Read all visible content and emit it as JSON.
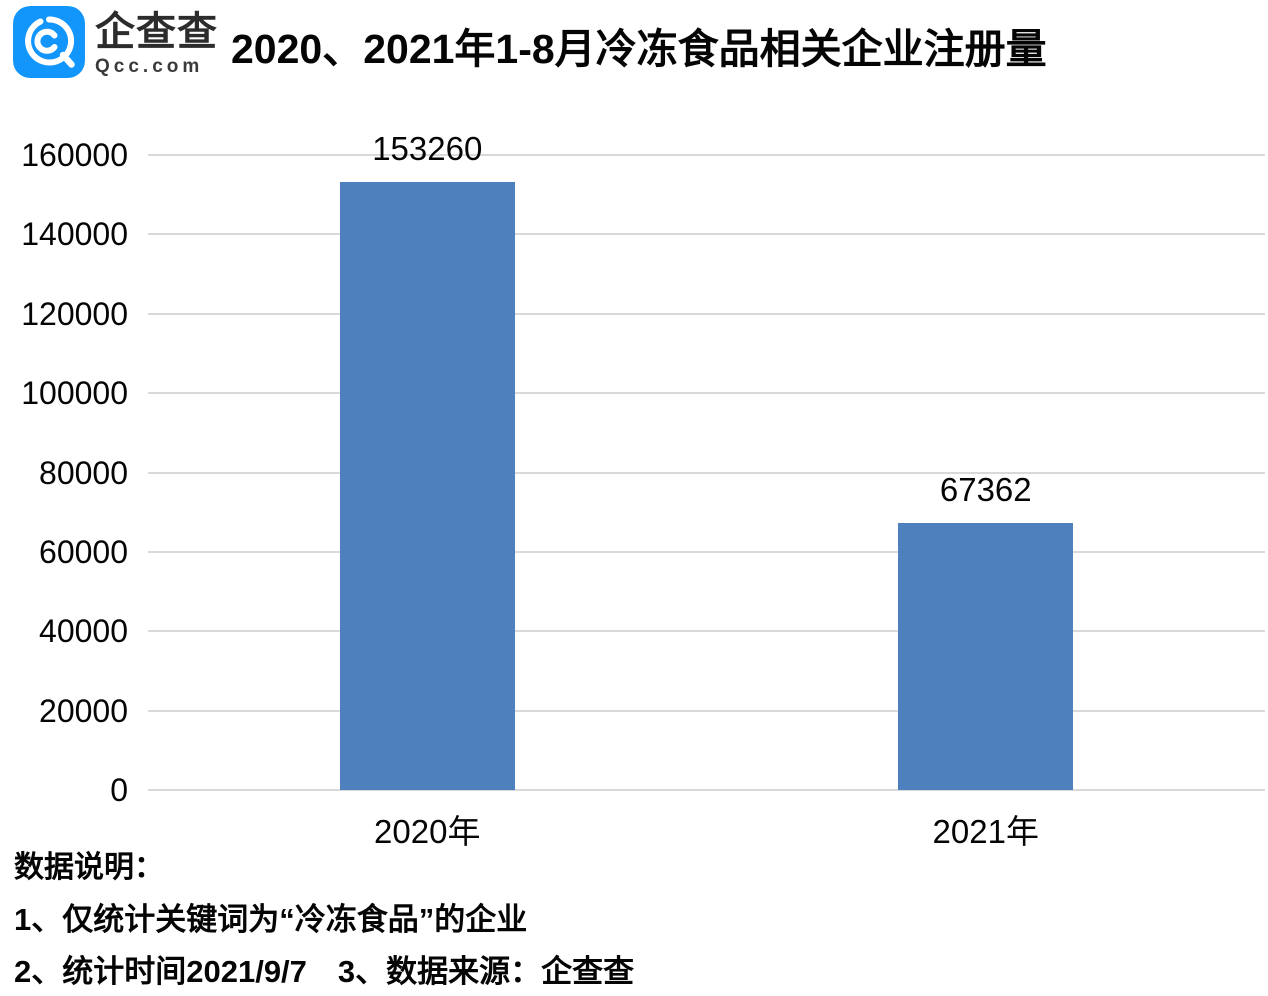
{
  "header": {
    "brand_cn": "企查查",
    "brand_domain": "Qcc.com",
    "brand_color": "#1396fb"
  },
  "chart_data": {
    "type": "bar",
    "title": "2020、2021年1-8月冷冻食品相关企业注册量",
    "categories": [
      "2020年",
      "2021年"
    ],
    "values": [
      153260,
      67362
    ],
    "value_labels": [
      "153260",
      "67362"
    ],
    "xlabel": "",
    "ylabel": "",
    "ylim": [
      0,
      160000
    ],
    "yticks": [
      0,
      20000,
      40000,
      60000,
      80000,
      100000,
      120000,
      140000,
      160000
    ],
    "grid": true,
    "legend": false,
    "bar_color": "#4e80bd",
    "grid_color": "#d9d9d9",
    "label_color": "#050505"
  },
  "notes": {
    "heading": "数据说明：",
    "line1": "1、仅统计关键词为“冷冻食品”的企业",
    "line2": "2、统计时间2021/9/7　3、数据来源：企查查",
    "items": [
      "仅统计关键词为“冷冻食品”的企业",
      "统计时间2021/9/7",
      "数据来源：企查查"
    ]
  }
}
